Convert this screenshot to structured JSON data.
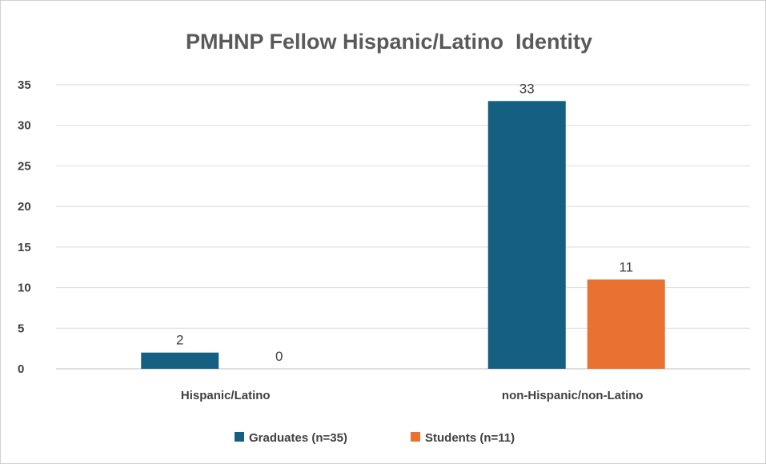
{
  "chart_data": {
    "type": "bar",
    "title": "PMHNP Fellow Hispanic/Latino  Identity",
    "xlabel": "",
    "ylabel": "",
    "categories": [
      "Hispanic/Latino",
      "non-Hispanic/non-Latino"
    ],
    "series": [
      {
        "name": "Graduates (n=35)",
        "values": [
          2,
          33
        ],
        "color": "#156082"
      },
      {
        "name": "Students (n=11)",
        "values": [
          0,
          11
        ],
        "color": "#E97132"
      }
    ],
    "ylim": [
      0,
      35
    ],
    "yticks": [
      0,
      5,
      10,
      15,
      20,
      25,
      30,
      35
    ],
    "grid": true,
    "legend": "bottom",
    "data_labels": true
  }
}
